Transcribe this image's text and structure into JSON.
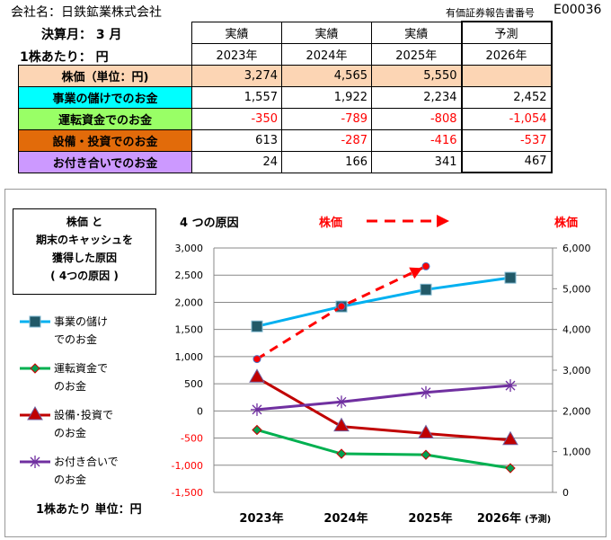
{
  "header": {
    "company": "会社名：日鉄鉱業株式会社",
    "report_no_label": "有価証券報告書番号",
    "report_no": "E00036",
    "fiscal_month": "決算月： 3 月",
    "per_share": "1株あたり： 円"
  },
  "table": {
    "column_types": [
      "実績",
      "実績",
      "実績",
      "予測"
    ],
    "years": [
      "2023年",
      "2024年",
      "2025年",
      "2026年"
    ],
    "rows": [
      {
        "label": "株価（単位：円)",
        "color": "#fcd5b4",
        "values": [
          "3,274",
          "4,565",
          "5,550",
          ""
        ]
      },
      {
        "label": "事業の儲けでのお金",
        "color": "#00ffff",
        "values": [
          "1,557",
          "1,922",
          "2,234",
          "2,452"
        ]
      },
      {
        "label": "運転資金でのお金",
        "color": "#99ff66",
        "values": [
          "-350",
          "-789",
          "-808",
          "-1,054"
        ]
      },
      {
        "label": "設備・投資でのお金",
        "color": "#e26b0a",
        "values": [
          "613",
          "-287",
          "-416",
          "-537"
        ]
      },
      {
        "label": "お付き合いでのお金",
        "color": "#cc99ff",
        "values": [
          "24",
          "166",
          "341",
          "467"
        ]
      }
    ]
  },
  "legend_box": {
    "line1": "株価 と",
    "line2": "期末のキャッシュを",
    "line3": "獲得した原因",
    "line4": "( 4つの原因 )"
  },
  "unit_note": "1株あたり 単位：円",
  "chart_data": {
    "type": "line",
    "title_left": "4 つの原因",
    "title_price": "株価",
    "right_axis_label": "株価",
    "categories": [
      "2023年",
      "2024年",
      "2025年",
      "2026年"
    ],
    "category_suffix": "(予測)",
    "y_left": {
      "min": -1500,
      "max": 3000,
      "ticks": [
        "3,000",
        "2,500",
        "2,000",
        "1,500",
        "1,000",
        "500",
        "0",
        "-500",
        "-1,000",
        "-1,500"
      ],
      "tick_values": [
        3000,
        2500,
        2000,
        1500,
        1000,
        500,
        0,
        -500,
        -1000,
        -1500
      ]
    },
    "y_right": {
      "min": 0,
      "max": 6000,
      "ticks": [
        "6,000",
        "5,000",
        "4,000",
        "3,000",
        "2,000",
        "1,000",
        "0"
      ],
      "tick_values": [
        6000,
        5000,
        4000,
        3000,
        2000,
        1000,
        0
      ]
    },
    "grid": true,
    "series": [
      {
        "name": "事業の儲けでのお金",
        "legend": [
          "事業の儲け",
          "でのお金"
        ],
        "values": [
          1557,
          1922,
          2234,
          2452
        ],
        "color": "#00b0f0",
        "marker": "square",
        "axis": "left"
      },
      {
        "name": "運転資金でのお金",
        "legend": [
          "運転資金で",
          "のお金"
        ],
        "values": [
          -350,
          -789,
          -808,
          -1054
        ],
        "color": "#00b050",
        "marker": "diamond",
        "axis": "left"
      },
      {
        "name": "設備・投資でのお金",
        "legend": [
          "設備･投資で",
          "のお金"
        ],
        "values": [
          613,
          -287,
          -416,
          -537
        ],
        "color": "#c00000",
        "marker": "triangle",
        "axis": "left"
      },
      {
        "name": "お付き合いでのお金",
        "legend": [
          "お付き合いで",
          "のお金"
        ],
        "values": [
          24,
          166,
          341,
          467
        ],
        "color": "#7030a0",
        "marker": "star",
        "axis": "left"
      },
      {
        "name": "株価",
        "values": [
          3274,
          4565,
          5550,
          null
        ],
        "color": "#ff0000",
        "marker": "circle",
        "axis": "right",
        "dashed": true
      }
    ]
  }
}
